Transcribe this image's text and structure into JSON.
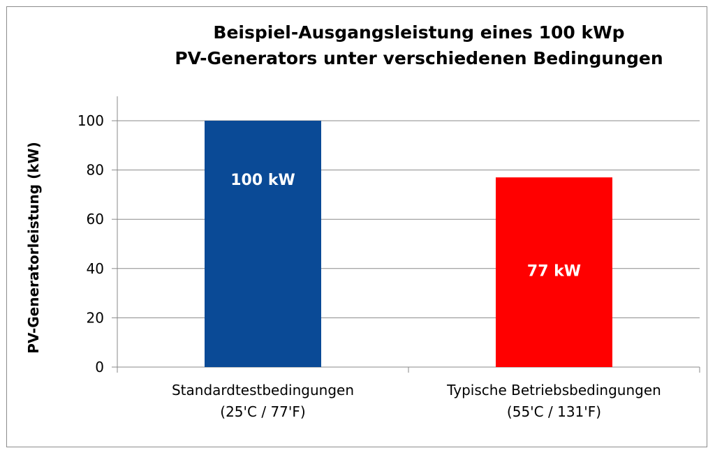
{
  "chart_data": {
    "type": "bar",
    "title": [
      "Beispiel-Ausgangsleistung eines 100 kWp",
      "PV-Generators unter verschiedenen Bedingungen"
    ],
    "ylabel": "PV-Generatorleistung (kW)",
    "ylim": [
      0,
      100
    ],
    "yticks": [
      0,
      20,
      40,
      60,
      80,
      100
    ],
    "grid": true,
    "categories": [
      [
        "Standardtestbedingungen",
        "(25'C / 77'F)"
      ],
      [
        "Typische Betriebsbedingungen",
        "(55'C / 131'F)"
      ]
    ],
    "values": [
      100,
      77
    ],
    "data_labels": [
      "100 kW",
      "77 kW"
    ],
    "colors": [
      "#0a4a96",
      "#ff0000"
    ]
  }
}
